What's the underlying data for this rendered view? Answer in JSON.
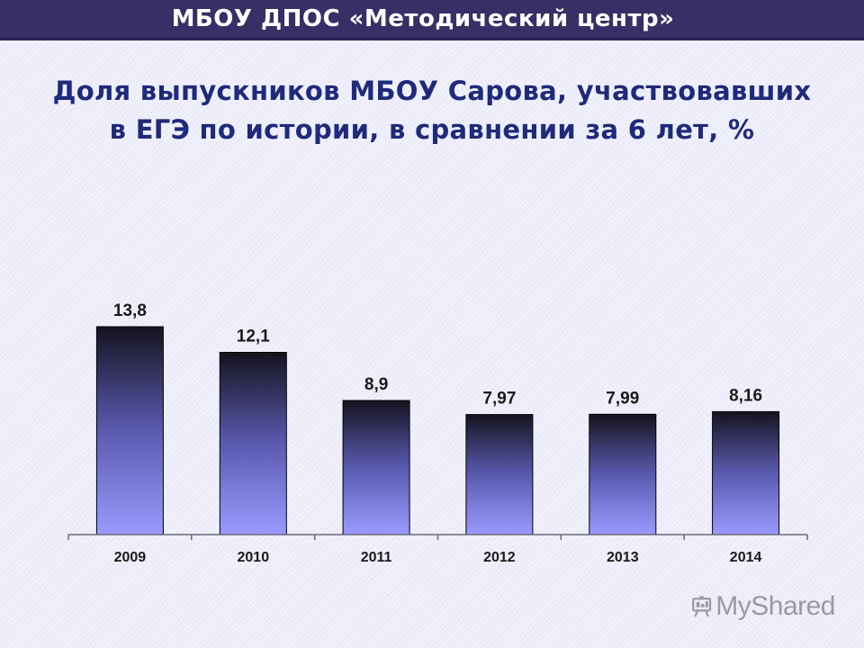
{
  "header": {
    "title": "МБОУ ДПОС «Методический центр»",
    "background": "#3a2e66"
  },
  "chart_title": {
    "line1": "Доля выпускников МБОУ Сарова, участвовавших",
    "line2": "в ЕГЭ по истории, в сравнении за 6 лет, %"
  },
  "chart_data": {
    "type": "bar",
    "title": "Доля выпускников МБОУ Сарова, участвовавших в ЕГЭ по истории, в сравнении за 6 лет, %",
    "categories": [
      "2009",
      "2010",
      "2011",
      "2012",
      "2013",
      "2014"
    ],
    "values": [
      13.8,
      12.1,
      8.9,
      7.97,
      7.99,
      8.16
    ],
    "value_labels": [
      "13,8",
      "12,1",
      "8,9",
      "7,97",
      "7,99",
      "8,16"
    ],
    "xlabel": "",
    "ylabel": "",
    "ylim": [
      0,
      13.8
    ],
    "grid": false,
    "legend": "none",
    "bar_gradient": {
      "top": "#15131f",
      "middle": "#5a5ab0",
      "bottom": "#9a9aff"
    }
  },
  "watermark": {
    "text": "MyShared",
    "icon": "presentation-board-icon"
  }
}
